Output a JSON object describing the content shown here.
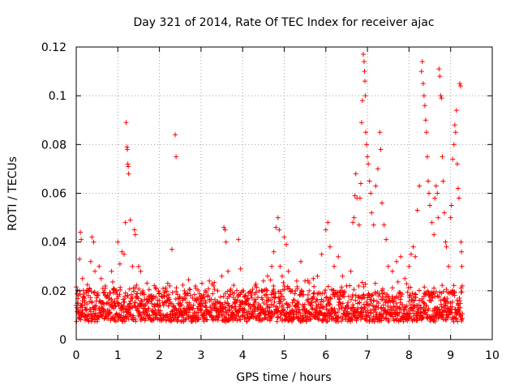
{
  "chart_data": {
    "type": "scatter",
    "title": "Day 321 of 2014, Rate Of TEC Index for receiver ajac",
    "xlabel": "GPS time / hours",
    "ylabel": "ROTI / TECUs",
    "xlim": [
      0,
      10
    ],
    "ylim": [
      0,
      0.12
    ],
    "x_ticks": [
      0,
      1,
      2,
      3,
      4,
      5,
      6,
      7,
      8,
      9,
      10
    ],
    "x_tick_labels": [
      "0",
      "1",
      "2",
      "3",
      "4",
      "5",
      "6",
      "7",
      "8",
      "9",
      "10"
    ],
    "y_ticks": [
      0,
      0.02,
      0.04,
      0.06,
      0.08,
      0.1,
      0.12
    ],
    "y_tick_labels": [
      "0",
      "0.02",
      "0.04",
      "0.06",
      "0.08",
      "0.1",
      "0.12"
    ],
    "grid": true,
    "marker": "+",
    "series": [
      {
        "name": "ROTI",
        "color": "#ff0000",
        "points": [
          [
            0.02,
            0.013
          ],
          [
            0.05,
            0.018
          ],
          [
            0.08,
            0.033
          ],
          [
            0.1,
            0.044
          ],
          [
            0.12,
            0.041
          ],
          [
            0.15,
            0.025
          ],
          [
            0.2,
            0.016
          ],
          [
            0.25,
            0.012
          ],
          [
            0.3,
            0.02
          ],
          [
            0.35,
            0.032
          ],
          [
            0.38,
            0.042
          ],
          [
            0.42,
            0.04
          ],
          [
            0.45,
            0.028
          ],
          [
            0.5,
            0.018
          ],
          [
            0.55,
            0.03
          ],
          [
            0.6,
            0.025
          ],
          [
            0.65,
            0.015
          ],
          [
            0.7,
            0.022
          ],
          [
            0.75,
            0.012
          ],
          [
            0.8,
            0.017
          ],
          [
            0.85,
            0.028
          ],
          [
            0.9,
            0.021
          ],
          [
            0.95,
            0.014
          ],
          [
            1.0,
            0.04
          ],
          [
            1.05,
            0.031
          ],
          [
            1.1,
            0.036
          ],
          [
            1.15,
            0.035
          ],
          [
            1.18,
            0.048
          ],
          [
            1.2,
            0.089
          ],
          [
            1.22,
            0.079
          ],
          [
            1.23,
            0.078
          ],
          [
            1.24,
            0.072
          ],
          [
            1.25,
            0.071
          ],
          [
            1.26,
            0.068
          ],
          [
            1.3,
            0.049
          ],
          [
            1.35,
            0.03
          ],
          [
            1.4,
            0.045
          ],
          [
            1.42,
            0.043
          ],
          [
            1.5,
            0.03
          ],
          [
            1.55,
            0.028
          ],
          [
            1.6,
            0.02
          ],
          [
            1.7,
            0.015
          ],
          [
            1.8,
            0.018
          ],
          [
            1.9,
            0.012
          ],
          [
            2.0,
            0.016
          ],
          [
            2.1,
            0.014
          ],
          [
            2.2,
            0.023
          ],
          [
            2.25,
            0.022
          ],
          [
            2.3,
            0.037
          ],
          [
            2.38,
            0.084
          ],
          [
            2.4,
            0.075
          ],
          [
            2.5,
            0.015
          ],
          [
            2.6,
            0.02
          ],
          [
            2.7,
            0.013
          ],
          [
            2.8,
            0.017
          ],
          [
            2.9,
            0.011
          ],
          [
            3.0,
            0.018
          ],
          [
            3.1,
            0.02
          ],
          [
            3.2,
            0.024
          ],
          [
            3.3,
            0.022
          ],
          [
            3.4,
            0.02
          ],
          [
            3.5,
            0.026
          ],
          [
            3.55,
            0.046
          ],
          [
            3.58,
            0.045
          ],
          [
            3.6,
            0.04
          ],
          [
            3.65,
            0.028
          ],
          [
            3.7,
            0.02
          ],
          [
            3.8,
            0.019
          ],
          [
            3.9,
            0.041
          ],
          [
            3.95,
            0.029
          ],
          [
            4.0,
            0.02
          ],
          [
            4.1,
            0.016
          ],
          [
            4.2,
            0.018
          ],
          [
            4.3,
            0.022
          ],
          [
            4.4,
            0.02
          ],
          [
            4.5,
            0.024
          ],
          [
            4.6,
            0.026
          ],
          [
            4.7,
            0.03
          ],
          [
            4.75,
            0.036
          ],
          [
            4.8,
            0.046
          ],
          [
            4.85,
            0.05
          ],
          [
            4.88,
            0.045
          ],
          [
            4.9,
            0.03
          ],
          [
            4.95,
            0.026
          ],
          [
            5.0,
            0.042
          ],
          [
            5.05,
            0.039
          ],
          [
            5.1,
            0.028
          ],
          [
            5.2,
            0.02
          ],
          [
            5.3,
            0.024
          ],
          [
            5.4,
            0.032
          ],
          [
            5.5,
            0.024
          ],
          [
            5.6,
            0.02
          ],
          [
            5.7,
            0.025
          ],
          [
            5.8,
            0.026
          ],
          [
            5.9,
            0.035
          ],
          [
            6.0,
            0.045
          ],
          [
            6.05,
            0.048
          ],
          [
            6.1,
            0.038
          ],
          [
            6.2,
            0.03
          ],
          [
            6.3,
            0.034
          ],
          [
            6.4,
            0.026
          ],
          [
            6.5,
            0.022
          ],
          [
            6.6,
            0.028
          ],
          [
            6.65,
            0.048
          ],
          [
            6.68,
            0.05
          ],
          [
            6.7,
            0.059
          ],
          [
            6.72,
            0.068
          ],
          [
            6.75,
            0.058
          ],
          [
            6.8,
            0.047
          ],
          [
            6.82,
            0.058
          ],
          [
            6.84,
            0.064
          ],
          [
            6.86,
            0.089
          ],
          [
            6.88,
            0.098
          ],
          [
            6.9,
            0.117
          ],
          [
            6.92,
            0.114
          ],
          [
            6.93,
            0.11
          ],
          [
            6.94,
            0.106
          ],
          [
            6.95,
            0.1
          ],
          [
            6.96,
            0.085
          ],
          [
            6.98,
            0.08
          ],
          [
            7.0,
            0.075
          ],
          [
            7.02,
            0.072
          ],
          [
            7.05,
            0.065
          ],
          [
            7.08,
            0.06
          ],
          [
            7.1,
            0.052
          ],
          [
            7.15,
            0.047
          ],
          [
            7.2,
            0.063
          ],
          [
            7.25,
            0.07
          ],
          [
            7.3,
            0.085
          ],
          [
            7.32,
            0.078
          ],
          [
            7.35,
            0.056
          ],
          [
            7.4,
            0.047
          ],
          [
            7.45,
            0.041
          ],
          [
            7.5,
            0.03
          ],
          [
            7.6,
            0.028
          ],
          [
            7.7,
            0.032
          ],
          [
            7.8,
            0.034
          ],
          [
            7.9,
            0.025
          ],
          [
            8.0,
            0.03
          ],
          [
            8.05,
            0.035
          ],
          [
            8.1,
            0.038
          ],
          [
            8.15,
            0.034
          ],
          [
            8.2,
            0.053
          ],
          [
            8.25,
            0.063
          ],
          [
            8.3,
            0.11
          ],
          [
            8.32,
            0.114
          ],
          [
            8.34,
            0.105
          ],
          [
            8.36,
            0.1
          ],
          [
            8.38,
            0.096
          ],
          [
            8.4,
            0.09
          ],
          [
            8.42,
            0.085
          ],
          [
            8.44,
            0.075
          ],
          [
            8.46,
            0.065
          ],
          [
            8.48,
            0.06
          ],
          [
            8.5,
            0.055
          ],
          [
            8.55,
            0.048
          ],
          [
            8.6,
            0.043
          ],
          [
            8.62,
            0.058
          ],
          [
            8.65,
            0.063
          ],
          [
            8.68,
            0.06
          ],
          [
            8.7,
            0.05
          ],
          [
            8.72,
            0.111
          ],
          [
            8.74,
            0.108
          ],
          [
            8.76,
            0.1
          ],
          [
            8.78,
            0.099
          ],
          [
            8.8,
            0.075
          ],
          [
            8.82,
            0.065
          ],
          [
            8.85,
            0.052
          ],
          [
            8.88,
            0.04
          ],
          [
            8.9,
            0.038
          ],
          [
            8.95,
            0.03
          ],
          [
            9.0,
            0.05
          ],
          [
            9.02,
            0.055
          ],
          [
            9.05,
            0.074
          ],
          [
            9.08,
            0.08
          ],
          [
            9.1,
            0.088
          ],
          [
            9.12,
            0.085
          ],
          [
            9.14,
            0.094
          ],
          [
            9.16,
            0.072
          ],
          [
            9.18,
            0.062
          ],
          [
            9.2,
            0.058
          ],
          [
            9.22,
            0.105
          ],
          [
            9.24,
            0.104
          ],
          [
            9.25,
            0.04
          ],
          [
            9.26,
            0.036
          ],
          [
            9.27,
            0.03
          ],
          [
            9.28,
            0.022
          ]
        ],
        "band": {
          "x_range": [
            0.0,
            9.28
          ],
          "y_range": [
            0.004,
            0.026
          ]
        }
      }
    ]
  }
}
